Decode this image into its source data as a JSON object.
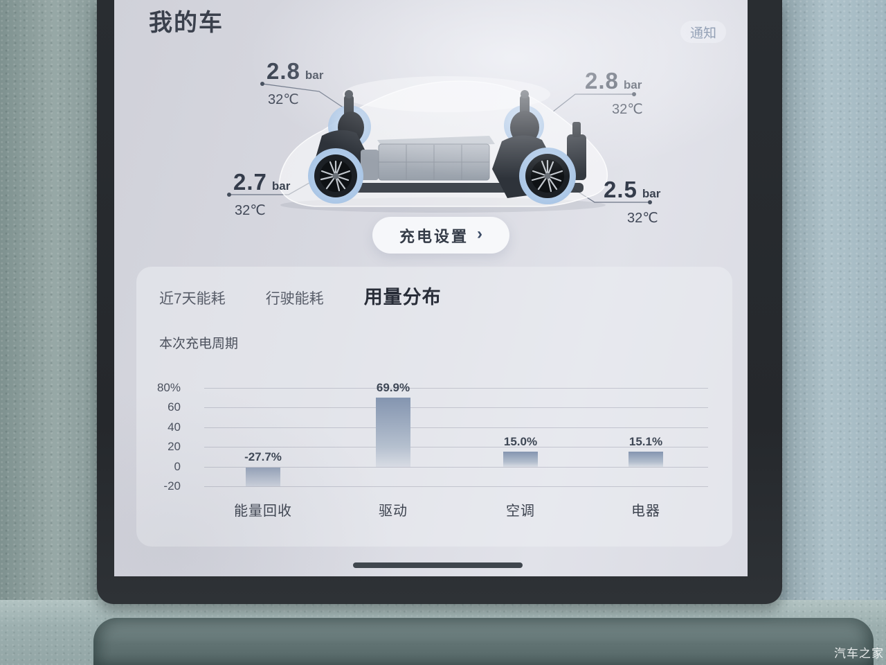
{
  "header": {
    "title": "我的车",
    "notification_button": "通知"
  },
  "tire_pressure": {
    "unit": "bar",
    "top_left": {
      "value": "2.8",
      "temp": "32℃"
    },
    "top_right": {
      "value": "2.8",
      "temp": "32℃"
    },
    "bottom_left": {
      "value": "2.7",
      "temp": "32℃"
    },
    "bottom_right": {
      "value": "2.5",
      "temp": "32℃"
    }
  },
  "charge_button": {
    "label": "充电设置",
    "chevron": "›"
  },
  "energy_panel": {
    "tabs": [
      {
        "label": "近7天能耗",
        "active": false
      },
      {
        "label": "行驶能耗",
        "active": false
      },
      {
        "label": "用量分布",
        "active": true
      }
    ],
    "period_label": "本次充电周期"
  },
  "chart_data": {
    "type": "bar",
    "title": "用量分布",
    "subtitle": "本次充电周期",
    "categories": [
      "能量回收",
      "驱动",
      "空调",
      "电器"
    ],
    "values": [
      -27.7,
      69.9,
      15.0,
      15.1
    ],
    "value_labels": [
      "-27.7%",
      "69.9%",
      "15.0%",
      "15.1%"
    ],
    "y_ticks": [
      {
        "label": "80%",
        "value": 80
      },
      {
        "label": "60",
        "value": 60
      },
      {
        "label": "40",
        "value": 40
      },
      {
        "label": "20",
        "value": 20
      },
      {
        "label": "0",
        "value": 0
      },
      {
        "label": "-20",
        "value": -20
      }
    ],
    "ylim": [
      -20,
      80
    ],
    "grid": true,
    "legend": false,
    "bar_color_top": "#8495b0",
    "bar_color_bottom": "#cdd3dd"
  },
  "watermark": "汽车之家",
  "colors": {
    "accent_halo_blue": "#b7d0ec",
    "text_dark": "#343c4b",
    "notification_text": "#7d8da6",
    "screen_bg": "#d9dae2"
  }
}
